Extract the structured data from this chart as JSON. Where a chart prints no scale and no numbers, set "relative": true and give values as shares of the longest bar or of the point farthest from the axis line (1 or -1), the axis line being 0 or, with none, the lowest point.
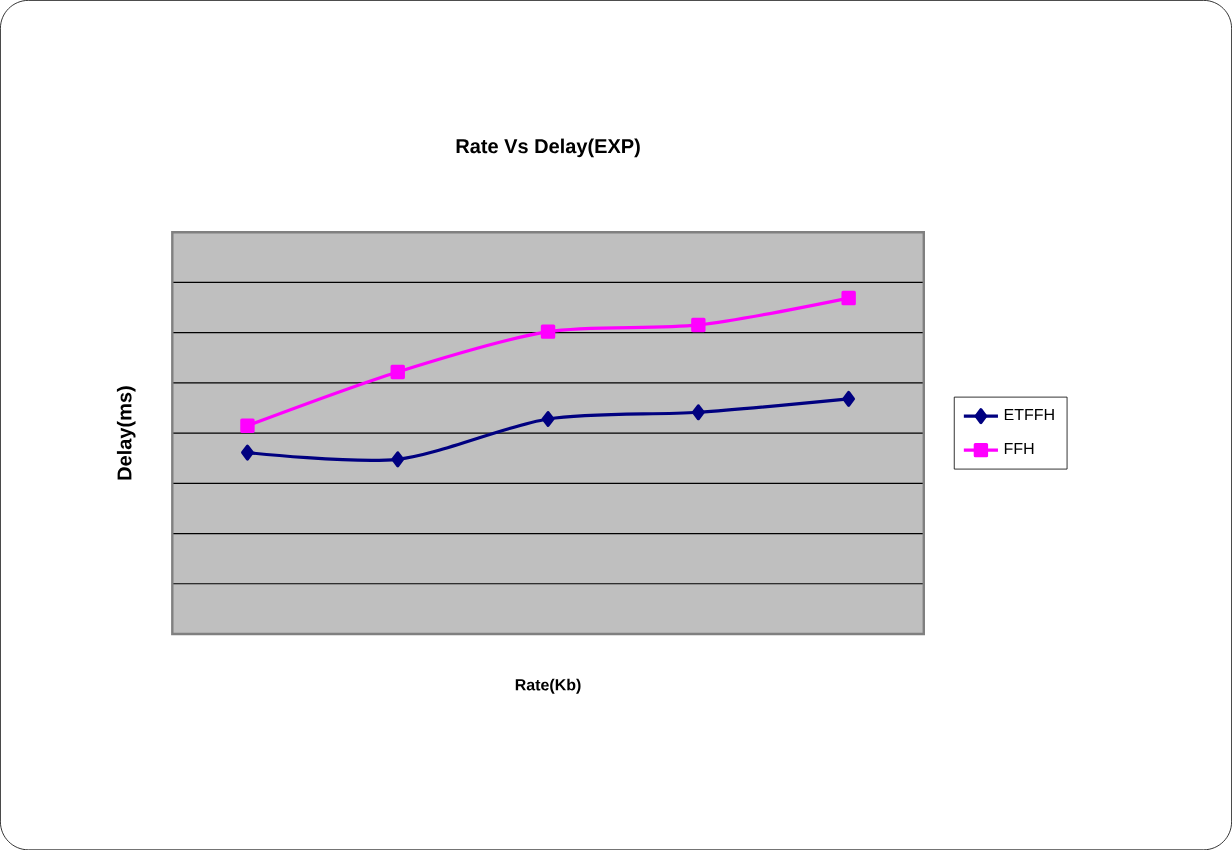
{
  "chart_data": {
    "type": "line",
    "title": "Rate Vs Delay(EXP)",
    "xlabel": "Rate(Kb)",
    "ylabel": "Delay(ms)",
    "relative": true,
    "categories": [
      null,
      null,
      null,
      null,
      null
    ],
    "series": [
      {
        "name": "ETFFH",
        "color": "#000080",
        "marker": "diamond",
        "values": [
          0.54,
          0.52,
          0.64,
          0.66,
          0.7
        ]
      },
      {
        "name": "FFH",
        "color": "#ff00ff",
        "marker": "square",
        "values": [
          0.62,
          0.78,
          0.9,
          0.92,
          1.0
        ]
      }
    ],
    "grid": "y",
    "legend": "right"
  }
}
